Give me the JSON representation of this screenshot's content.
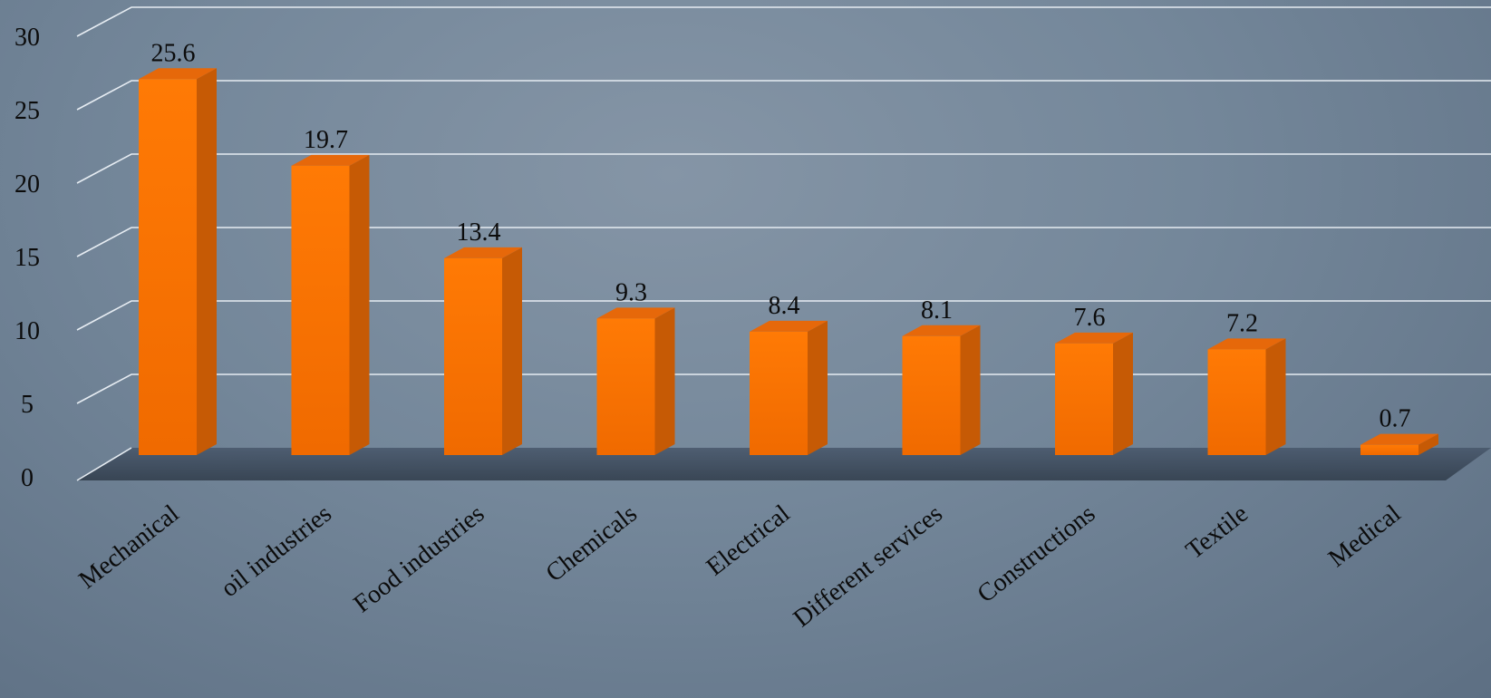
{
  "chart_data": {
    "type": "bar",
    "title": "",
    "xlabel": "",
    "ylabel": "",
    "categories": [
      "Mechanical",
      "oil industries",
      "Food industries",
      "Chemicals",
      "Electrical",
      "Different services",
      "Constructions",
      "Textile",
      "Medical"
    ],
    "values": [
      25.6,
      19.7,
      13.4,
      9.3,
      8.4,
      8.1,
      7.6,
      7.2,
      0.7
    ],
    "data_labels": [
      "25.6",
      "19.7",
      "13.4",
      "9.3",
      "8.4",
      "8.1",
      "7.6",
      "7.2",
      "0.7"
    ],
    "yticks": [
      "0",
      "5",
      "10",
      "15",
      "20",
      "25",
      "30"
    ],
    "ylim": [
      0,
      30
    ],
    "grid": true,
    "legend": "none",
    "colors": {
      "bar_front": "#fb7100",
      "bar_side": "#c65a05",
      "bar_top": "#e6680a",
      "floor": "#3f4d5e",
      "grid": "#e6ecf2"
    }
  }
}
